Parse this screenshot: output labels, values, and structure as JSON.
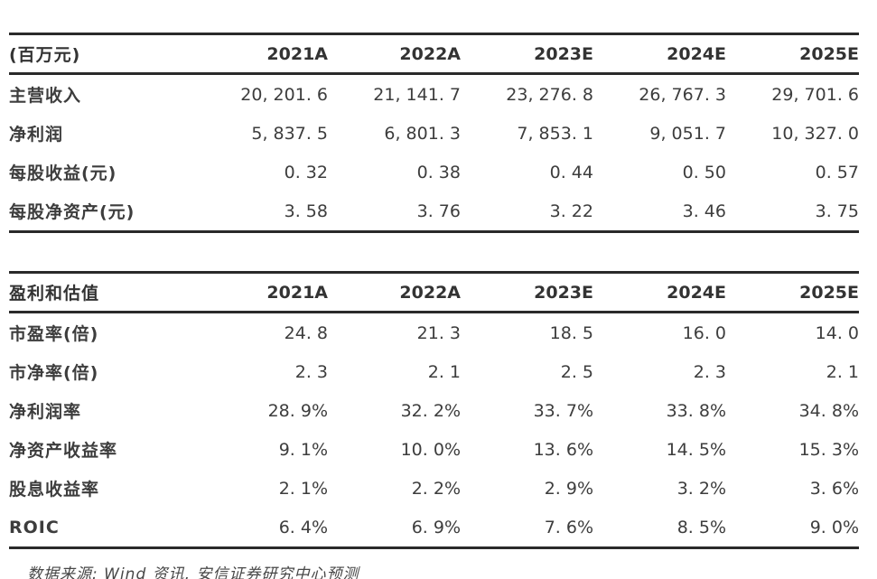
{
  "colors": {
    "text": "#3d3d3d",
    "header_text": "#333333",
    "rule_line": "#2a2a2a",
    "background": "#ffffff"
  },
  "forecast_table": {
    "unit_header": "(百万元)",
    "columns": [
      "2021A",
      "2022A",
      "2023E",
      "2024E",
      "2025E"
    ],
    "rows": [
      {
        "label": "主营收入",
        "values": [
          "20, 201. 6",
          "21, 141. 7",
          "23, 276. 8",
          "26, 767. 3",
          "29, 701. 6"
        ]
      },
      {
        "label": "净利润",
        "values": [
          "5, 837. 5",
          "6, 801. 3",
          "7, 853. 1",
          "9, 051. 7",
          "10, 327. 0"
        ]
      },
      {
        "label": "每股收益(元)",
        "values": [
          "0. 32",
          "0. 38",
          "0. 44",
          "0. 50",
          "0. 57"
        ]
      },
      {
        "label": "每股净资产(元)",
        "values": [
          "3. 58",
          "3. 76",
          "3. 22",
          "3. 46",
          "3. 75"
        ]
      }
    ]
  },
  "valuation_table": {
    "title_header": "盈利和估值",
    "columns": [
      "2021A",
      "2022A",
      "2023E",
      "2024E",
      "2025E"
    ],
    "rows": [
      {
        "label": "市盈率(倍)",
        "values": [
          "24. 8",
          "21. 3",
          "18. 5",
          "16. 0",
          "14. 0"
        ]
      },
      {
        "label": "市净率(倍)",
        "values": [
          "2. 3",
          "2. 1",
          "2. 5",
          "2. 3",
          "2. 1"
        ]
      },
      {
        "label": "净利润率",
        "values": [
          "28. 9%",
          "32. 2%",
          "33. 7%",
          "33. 8%",
          "34. 8%"
        ]
      },
      {
        "label": "净资产收益率",
        "values": [
          "9. 1%",
          "10. 0%",
          "13. 6%",
          "14. 5%",
          "15. 3%"
        ]
      },
      {
        "label": "股息收益率",
        "values": [
          "2. 1%",
          "2. 2%",
          "2. 9%",
          "3. 2%",
          "3. 6%"
        ]
      },
      {
        "label": "ROIC",
        "values": [
          "6. 4%",
          "6. 9%",
          "7. 6%",
          "8. 5%",
          "9. 0%"
        ]
      }
    ]
  },
  "footer": {
    "source": "数据来源: Wind 资讯, 安信证券研究中心预测"
  }
}
